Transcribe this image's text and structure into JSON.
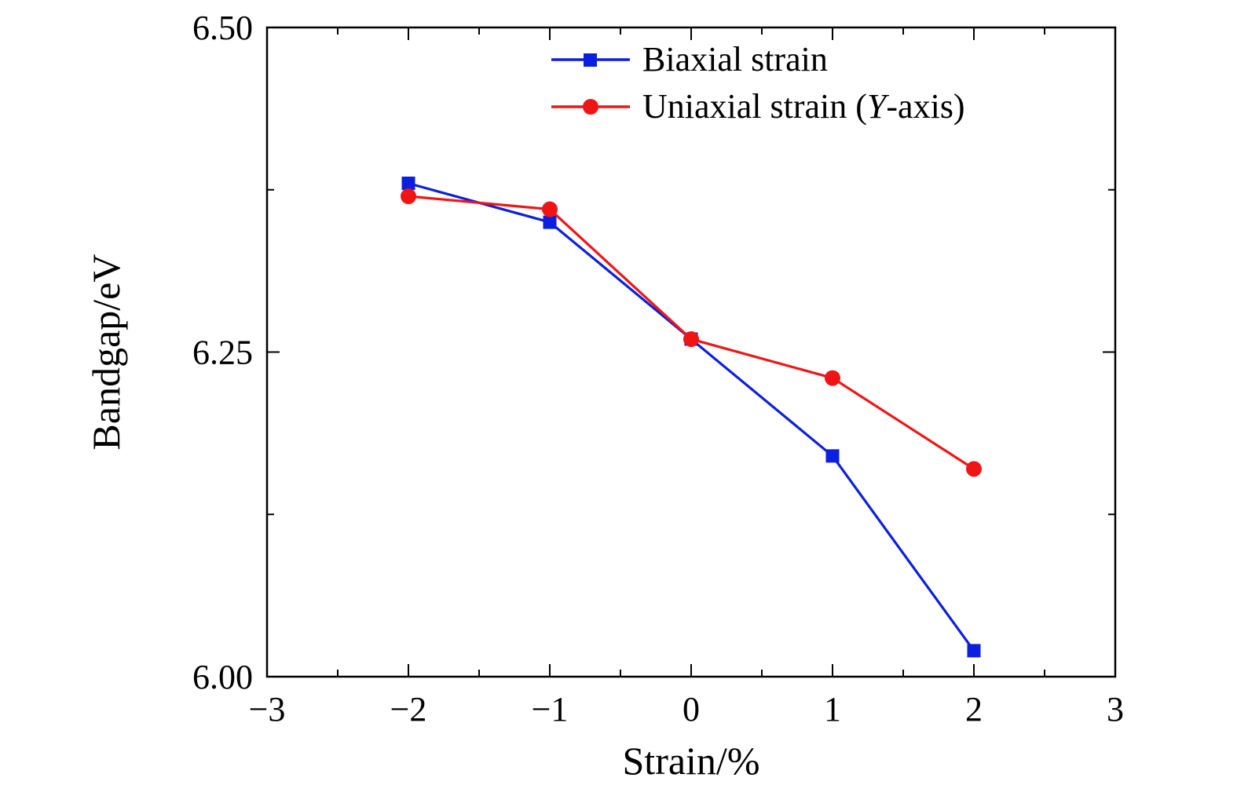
{
  "figure": {
    "background": "#ffffff",
    "frame_color": "#000000"
  },
  "axes": {
    "x": {
      "label": "Strain/%",
      "min": -3,
      "max": 3,
      "major_ticks": [
        -3,
        -2,
        -1,
        0,
        1,
        2,
        3
      ],
      "tick_labels": [
        "−3",
        "−2",
        "−1",
        "0",
        "1",
        "2",
        "3"
      ],
      "minor_step": 0.5
    },
    "y": {
      "label": "Bandgap/eV",
      "min": 6.0,
      "max": 6.5,
      "major_ticks": [
        6.0,
        6.25,
        6.5
      ],
      "tick_labels": [
        "6.00",
        "6.25",
        "6.50"
      ],
      "minor_step": 0.125
    }
  },
  "legend": {
    "position": "top-center-inside",
    "items": [
      {
        "label": "Biaxial strain",
        "marker": "square",
        "color": "#0b1fe0"
      },
      {
        "label_prefix": "Uniaxial strain (",
        "label_italic": "Y",
        "label_suffix": "-axis)",
        "label": "Uniaxial strain (Y-axis)",
        "marker": "circle",
        "color": "#f01515"
      }
    ]
  },
  "chart_data": {
    "type": "line",
    "title": "",
    "xlabel": "Strain/%",
    "ylabel": "Bandgap/eV",
    "xlim": [
      -3,
      3
    ],
    "ylim": [
      6.0,
      6.5
    ],
    "grid": false,
    "legend_position": "top-center-inside",
    "x": [
      -2,
      -1,
      0,
      1,
      2
    ],
    "series": [
      {
        "name": "Biaxial strain",
        "color": "#0b1fe0",
        "marker": "square",
        "values": [
          6.38,
          6.35,
          6.26,
          6.17,
          6.02
        ]
      },
      {
        "name": "Uniaxial strain (Y-axis)",
        "color": "#f01515",
        "marker": "circle",
        "values": [
          6.37,
          6.36,
          6.26,
          6.23,
          6.16
        ]
      }
    ]
  }
}
